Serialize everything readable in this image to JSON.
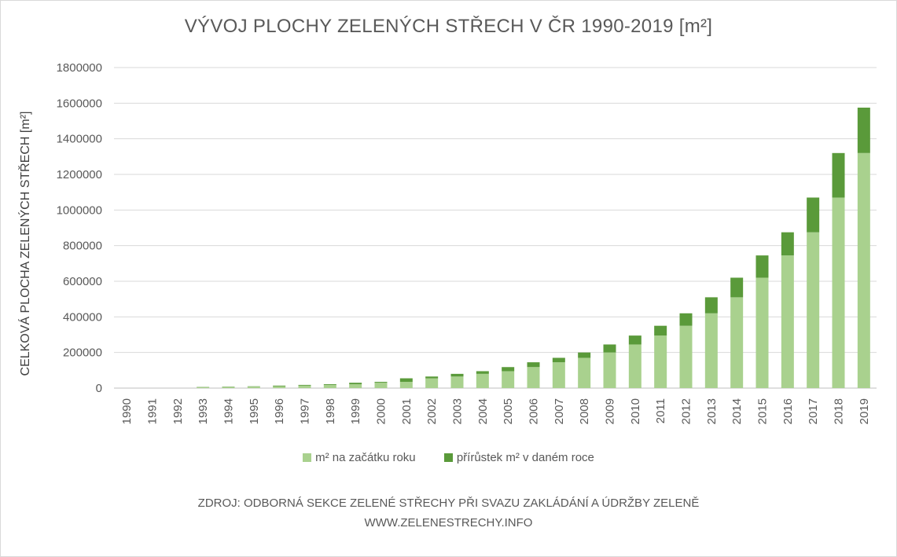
{
  "chart_data": {
    "type": "bar",
    "stacked": true,
    "title": "VÝVOJ PLOCHY ZELENÝCH STŘECH V ČR 1990-2019 [m²]",
    "ylabel": "CELKOVÁ PLOCHA ZELENÝCH STŘECH [m²]",
    "xlabel": "",
    "ylim": [
      0,
      1800000
    ],
    "yticks": [
      "0",
      "200000",
      "400000",
      "600000",
      "800000",
      "1000000",
      "1200000",
      "1400000",
      "1600000",
      "1800000"
    ],
    "categories": [
      "1990",
      "1991",
      "1992",
      "1993",
      "1994",
      "1995",
      "1996",
      "1997",
      "1998",
      "1999",
      "2000",
      "2001",
      "2002",
      "2003",
      "2004",
      "2005",
      "2006",
      "2007",
      "2008",
      "2009",
      "2010",
      "2011",
      "2012",
      "2013",
      "2014",
      "2015",
      "2016",
      "2017",
      "2018",
      "2019"
    ],
    "series": [
      {
        "name": "m² na začátku roku",
        "color": "#a9d18e",
        "values": [
          0,
          0,
          0,
          4000,
          6000,
          8000,
          10000,
          14000,
          18000,
          22000,
          30000,
          35000,
          55000,
          65000,
          80000,
          95000,
          118000,
          145000,
          170000,
          200000,
          245000,
          295000,
          350000,
          420000,
          510000,
          620000,
          745000,
          875000,
          1070000,
          1320000
        ]
      },
      {
        "name": "přírůstek m² v daném roce",
        "color": "#5a9a3a",
        "values": [
          0,
          0,
          0,
          2000,
          2000,
          2000,
          4000,
          4000,
          4000,
          8000,
          5000,
          20000,
          10000,
          15000,
          15000,
          23000,
          27000,
          25000,
          30000,
          45000,
          50000,
          55000,
          70000,
          90000,
          110000,
          125000,
          130000,
          195000,
          250000,
          255000
        ]
      }
    ],
    "legend": "bottom",
    "grid": true
  },
  "source": {
    "line1": "ZDROJ: ODBORNÁ SEKCE ZELENÉ STŘECHY PŘI SVAZU ZAKLÁDÁNÍ A ÚDRŽBY ZELENĚ",
    "line2": "WWW.ZELENESTRECHY.INFO"
  }
}
